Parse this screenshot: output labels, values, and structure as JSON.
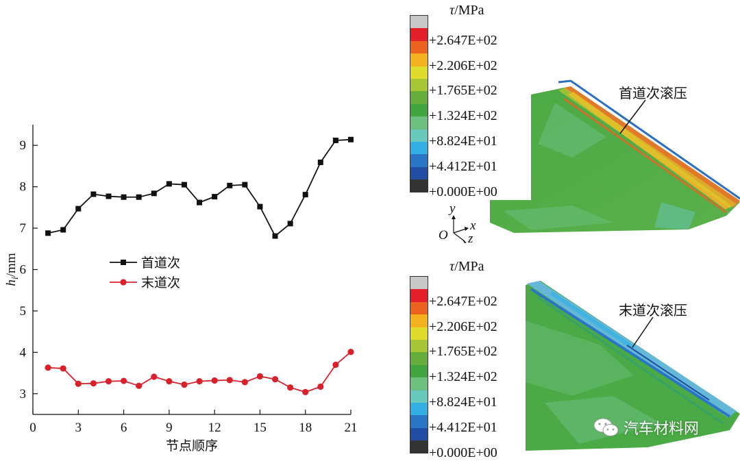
{
  "chart_data": [
    {
      "type": "line",
      "xlabel": "节点顺序",
      "ylabel_main": "h",
      "ylabel_sub": "i",
      "ylabel_unit": "/mm",
      "xlim": [
        0,
        21
      ],
      "ylim": [
        2.5,
        9.5
      ],
      "x_ticks": [
        "0",
        "3",
        "6",
        "9",
        "12",
        "15",
        "18",
        "21"
      ],
      "y_ticks": [
        "3",
        "4",
        "5",
        "6",
        "7",
        "8",
        "9"
      ],
      "x": [
        1,
        2,
        3,
        4,
        5,
        6,
        7,
        8,
        9,
        10,
        11,
        12,
        13,
        14,
        15,
        16,
        17,
        18,
        19,
        20,
        21
      ],
      "series": [
        {
          "name": "首道次",
          "color": "#111111",
          "marker": "square",
          "values": [
            6.88,
            6.96,
            7.47,
            7.82,
            7.77,
            7.75,
            7.75,
            7.84,
            8.07,
            8.05,
            7.62,
            7.76,
            8.03,
            8.05,
            7.52,
            6.81,
            7.11,
            7.81,
            8.59,
            9.12,
            9.14
          ]
        },
        {
          "name": "末道次",
          "color": "#d9212c",
          "marker": "circle",
          "values": [
            3.63,
            3.61,
            3.24,
            3.25,
            3.3,
            3.31,
            3.19,
            3.41,
            3.3,
            3.22,
            3.3,
            3.32,
            3.33,
            3.28,
            3.42,
            3.35,
            3.15,
            3.04,
            3.17,
            3.7,
            4.01
          ]
        }
      ],
      "legend": "center-left"
    },
    {
      "type": "heatmap",
      "panels": [
        {
          "title_symbol": "τ",
          "title_unit": "/MPa",
          "callout": "首道次滚压"
        },
        {
          "title_symbol": "τ",
          "title_unit": "/MPa",
          "callout": "末道次滚压"
        }
      ],
      "scale_labels": [
        "+2.647E+02",
        "+2.206E+02",
        "+1.765E+02",
        "+1.324E+02",
        "+8.824E+01",
        "+4.412E+01",
        "+0.000E+00"
      ],
      "scale_colors": [
        "#c8c8c8",
        "#e4212a",
        "#ea6420",
        "#f3b21d",
        "#dedb2a",
        "#a7c634",
        "#64ad3b",
        "#40a53e",
        "#6cbf7f",
        "#67c8bb",
        "#33afe3",
        "#2a76c6",
        "#214da3",
        "#333333"
      ]
    }
  ],
  "axes_glyph": {
    "y": "y",
    "x": "x",
    "z": "z",
    "origin": "O"
  },
  "watermark": "汽车材料网"
}
